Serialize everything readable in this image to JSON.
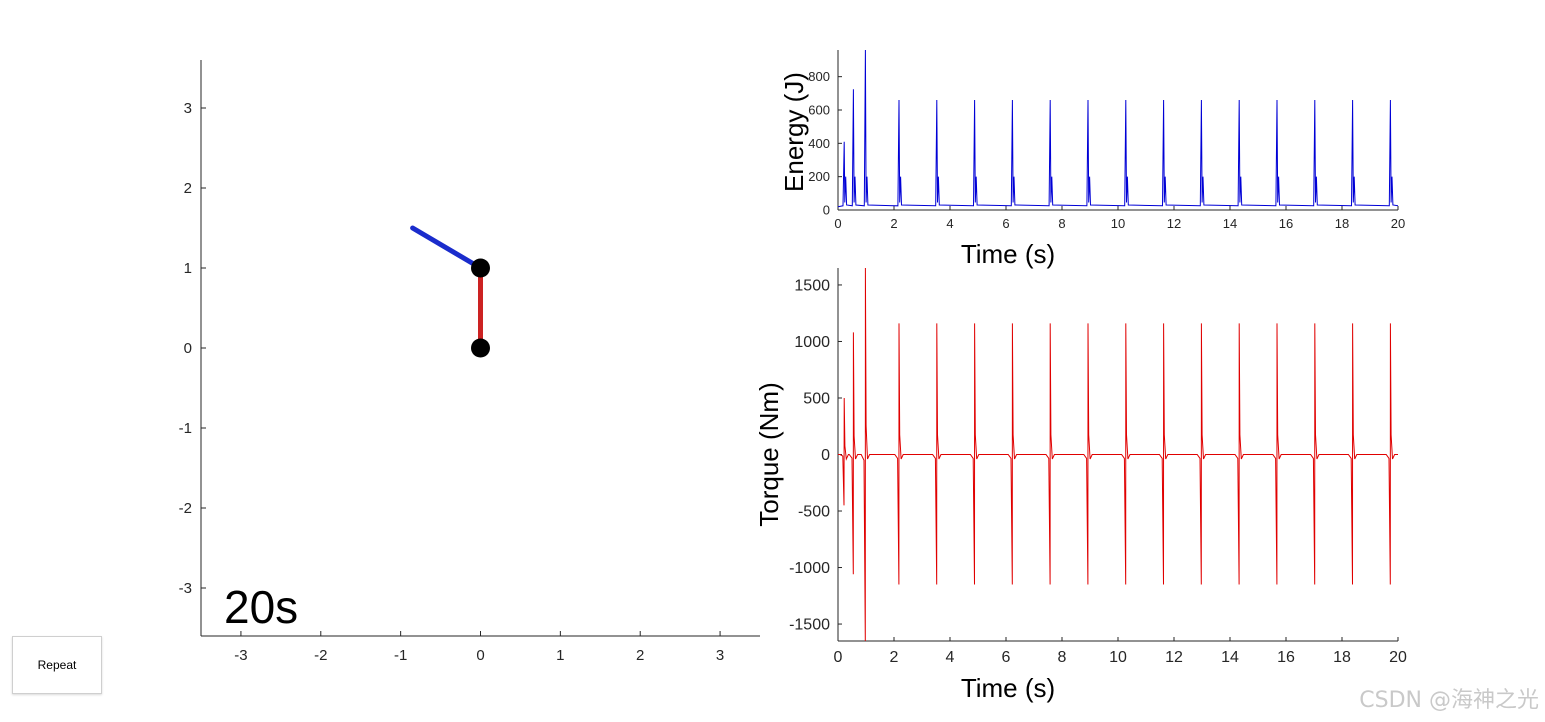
{
  "ui": {
    "repeat_label": "Repeat",
    "time_label": "20s",
    "watermark": "CSDN @海神之光"
  },
  "colors": {
    "energy": "#0000d6",
    "torque": "#e00000",
    "link1": "#cc2222",
    "link2": "#1a2ccc",
    "joint": "#000000"
  },
  "chart_data": [
    {
      "id": "pendulum",
      "type": "scatter",
      "title": "",
      "xlabel": "",
      "ylabel": "",
      "xlim": [
        -3.5,
        3.5
      ],
      "ylim": [
        -3.6,
        3.6
      ],
      "xticks": [
        -3,
        -2,
        -1,
        0,
        1,
        2,
        3
      ],
      "yticks": [
        -3,
        -2,
        -1,
        0,
        1,
        2,
        3
      ],
      "joints": [
        {
          "x": 0,
          "y": 0
        },
        {
          "x": 0,
          "y": 1
        }
      ],
      "links": [
        {
          "name": "link1",
          "from": [
            0,
            0
          ],
          "to": [
            0,
            1
          ]
        },
        {
          "name": "link2",
          "from": [
            0,
            1
          ],
          "to": [
            -0.85,
            1.5
          ]
        }
      ]
    },
    {
      "id": "energy",
      "type": "line",
      "title": "",
      "xlabel": "Time (s)",
      "ylabel": "Energy (J)",
      "xlim": [
        0,
        20
      ],
      "ylim": [
        0,
        960
      ],
      "xticks": [
        0,
        2,
        4,
        6,
        8,
        10,
        12,
        14,
        16,
        18,
        20
      ],
      "yticks": [
        0,
        200,
        400,
        600,
        800
      ],
      "baseline": 20,
      "spikes": [
        {
          "t": 0.22,
          "peak": 410
        },
        {
          "t": 0.55,
          "peak": 725
        },
        {
          "t": 0.98,
          "peak": 960
        },
        {
          "t": 2.18,
          "peak": 660
        },
        {
          "t": 3.53,
          "peak": 660
        },
        {
          "t": 4.88,
          "peak": 660
        },
        {
          "t": 6.23,
          "peak": 660
        },
        {
          "t": 7.58,
          "peak": 660
        },
        {
          "t": 8.93,
          "peak": 660
        },
        {
          "t": 10.28,
          "peak": 660
        },
        {
          "t": 11.63,
          "peak": 660
        },
        {
          "t": 12.98,
          "peak": 660
        },
        {
          "t": 14.33,
          "peak": 660
        },
        {
          "t": 15.68,
          "peak": 660
        },
        {
          "t": 17.03,
          "peak": 660
        },
        {
          "t": 18.38,
          "peak": 660
        },
        {
          "t": 19.73,
          "peak": 660
        }
      ]
    },
    {
      "id": "torque",
      "type": "line",
      "title": "",
      "xlabel": "Time (s)",
      "ylabel": "Torque (Nm)",
      "xlim": [
        0,
        20
      ],
      "ylim": [
        -1650,
        1650
      ],
      "xticks": [
        0,
        2,
        4,
        6,
        8,
        10,
        12,
        14,
        16,
        18,
        20
      ],
      "yticks": [
        -1500,
        -1000,
        -500,
        0,
        500,
        1000,
        1500
      ],
      "spikes": [
        {
          "t": 0.22,
          "high": 500,
          "low": -450
        },
        {
          "t": 0.55,
          "high": 1080,
          "low": -1060
        },
        {
          "t": 0.98,
          "high": 1700,
          "low": -1700
        },
        {
          "t": 2.18,
          "high": 1160,
          "low": -1150
        },
        {
          "t": 3.53,
          "high": 1160,
          "low": -1150
        },
        {
          "t": 4.88,
          "high": 1160,
          "low": -1150
        },
        {
          "t": 6.23,
          "high": 1160,
          "low": -1150
        },
        {
          "t": 7.58,
          "high": 1160,
          "low": -1150
        },
        {
          "t": 8.93,
          "high": 1160,
          "low": -1150
        },
        {
          "t": 10.28,
          "high": 1160,
          "low": -1150
        },
        {
          "t": 11.63,
          "high": 1160,
          "low": -1150
        },
        {
          "t": 12.98,
          "high": 1160,
          "low": -1150
        },
        {
          "t": 14.33,
          "high": 1160,
          "low": -1150
        },
        {
          "t": 15.68,
          "high": 1160,
          "low": -1150
        },
        {
          "t": 17.03,
          "high": 1160,
          "low": -1150
        },
        {
          "t": 18.38,
          "high": 1160,
          "low": -1150
        },
        {
          "t": 19.73,
          "high": 1160,
          "low": -1150
        }
      ]
    }
  ]
}
